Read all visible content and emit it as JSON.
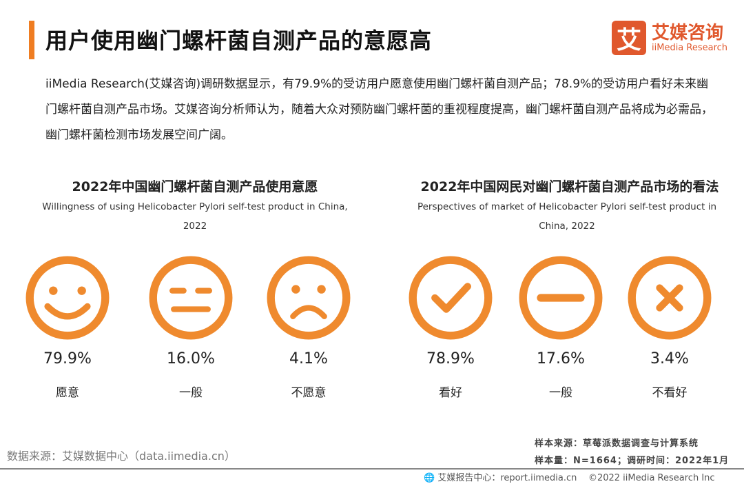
{
  "header": {
    "title": "用户使用幽门螺杆菌自测产品的意愿高",
    "logo_cn": "艾媒咨询",
    "logo_en": "iiMedia Research",
    "logo_mark": "艾"
  },
  "description": "iiMedia Research(艾媒咨询)调研数据显示，有79.9%的受访用户愿意使用幽门螺杆菌自测产品；78.9%的受访用户看好未来幽门螺杆菌自测产品市场。艾媒咨询分析师认为，随着大众对预防幽门螺杆菌的重视程度提高，幽门螺杆菌自测产品将成为必需品，幽门螺杆菌检测市场发展空间广阔。",
  "colors": {
    "accent": "#ef8a2e",
    "brand": "#e0582d"
  },
  "chart_data": [
    {
      "type": "table",
      "title": "2022年中国幽门螺杆菌自测产品使用意愿",
      "subtitle": "Willingness of using Helicobacter Pylori self-test product in China, 2022",
      "items": [
        {
          "icon": "smile-icon",
          "value": "79.9%",
          "label": "愿意"
        },
        {
          "icon": "neutral-face-icon",
          "value": "16.0%",
          "label": "一般"
        },
        {
          "icon": "sad-face-icon",
          "value": "4.1%",
          "label": "不愿意"
        }
      ]
    },
    {
      "type": "table",
      "title": "2022年中国网民对幽门螺杆菌自测产品市场的看法",
      "subtitle": "Perspectives of market of  Helicobacter Pylori self-test product in China, 2022",
      "items": [
        {
          "icon": "check-icon",
          "value": "78.9%",
          "label": "看好"
        },
        {
          "icon": "minus-icon",
          "value": "17.6%",
          "label": "一般"
        },
        {
          "icon": "cross-icon",
          "value": "3.4%",
          "label": "不看好"
        }
      ]
    }
  ],
  "footer": {
    "source": "数据来源：艾媒数据中心（data.iimedia.cn）",
    "sample_source": "样本来源：草莓派数据调查与计算系统",
    "sample_info": "样本量：N=1664；调研时间：2022年1月",
    "report": "艾媒报告中心：report.iimedia.cn",
    "copyright": "©2022 iiMedia Research Inc"
  }
}
